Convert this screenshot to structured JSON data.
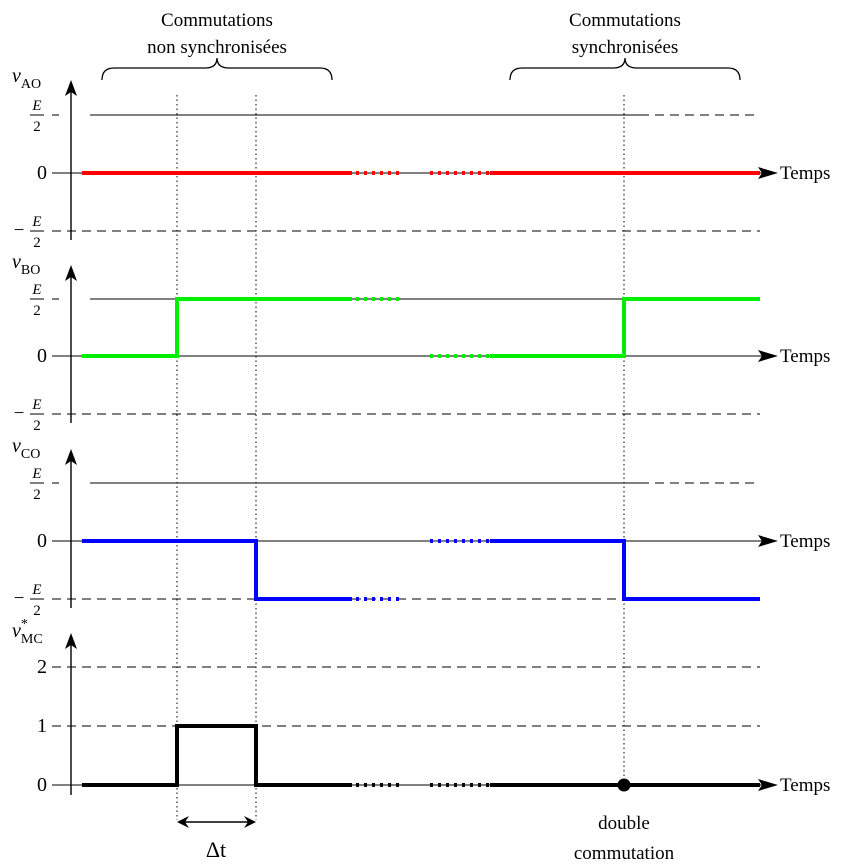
{
  "headers": {
    "left_line1": "Commutations",
    "left_line2": "non synchronisées",
    "right_line1": "Commutations",
    "right_line2": "synchronisées"
  },
  "axis_label": "Temps",
  "panels": [
    {
      "id": "vAO",
      "var": "v",
      "sub": "AO",
      "sup": "",
      "color": "#ff0000",
      "levels": [
        {
          "label": "E/2",
          "type": "frac",
          "sign": "",
          "style": "solid-dashed"
        },
        {
          "label": "0",
          "type": "text",
          "style": "axis"
        },
        {
          "label": "E/2",
          "type": "frac",
          "sign": "−",
          "style": "dashed"
        }
      ],
      "signal": "constant at 0"
    },
    {
      "id": "vBO",
      "var": "v",
      "sub": "BO",
      "sup": "",
      "color": "#00ee00",
      "levels": [
        {
          "label": "E/2",
          "type": "frac",
          "sign": "",
          "style": "solid-dashed"
        },
        {
          "label": "0",
          "type": "text",
          "style": "axis"
        },
        {
          "label": "E/2",
          "type": "frac",
          "sign": "−",
          "style": "dashed"
        }
      ],
      "signal": "0 → E/2"
    },
    {
      "id": "vCO",
      "var": "v",
      "sub": "CO",
      "sup": "",
      "color": "#0000ff",
      "levels": [
        {
          "label": "E/2",
          "type": "frac",
          "sign": "",
          "style": "solid-dashed"
        },
        {
          "label": "0",
          "type": "text",
          "style": "axis"
        },
        {
          "label": "E/2",
          "type": "frac",
          "sign": "−",
          "style": "dashed"
        }
      ],
      "signal": "0 → −E/2"
    },
    {
      "id": "vMC",
      "var": "v",
      "sub": "MC",
      "sup": "*",
      "color": "#000000",
      "levels": [
        {
          "label": "2",
          "type": "text",
          "style": "dashed"
        },
        {
          "label": "1",
          "type": "text",
          "style": "dashed"
        },
        {
          "label": "0",
          "type": "text",
          "style": "axis"
        }
      ],
      "signal": "pulse of 1 during Δt"
    }
  ],
  "delta_label": "Δt",
  "double_label_line1": "double",
  "double_label_line2": "commutation",
  "fraction_numerator": "E",
  "fraction_denominator": "2"
}
